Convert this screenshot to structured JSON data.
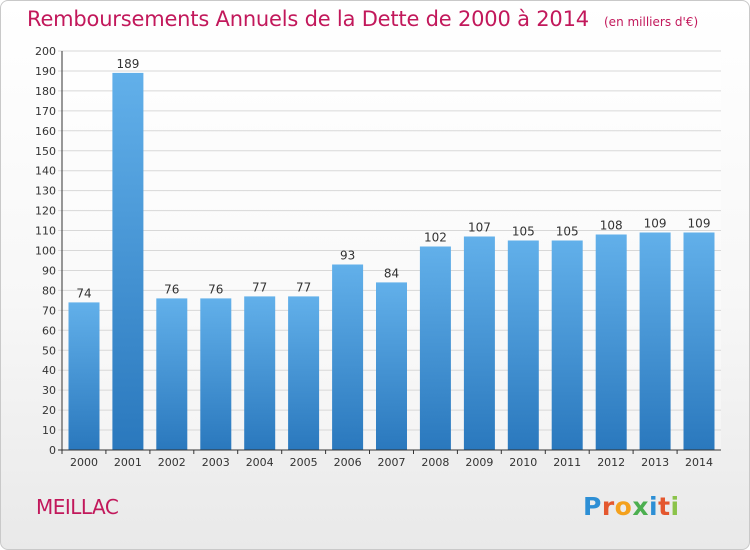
{
  "header": {
    "title": "Remboursements Annuels de la Dette de 2000 à 2014",
    "subtitle": "(en milliers d'€)"
  },
  "footer": {
    "location": "MEILLAC",
    "logo_text": "Proxiti"
  },
  "colors": {
    "title": "#c2185b",
    "bar_light": "#62b0ea",
    "bar_dark": "#2a78bd",
    "grid": "#d8d8d8",
    "axis": "#333333"
  },
  "chart_data": {
    "type": "bar",
    "title": "Remboursements Annuels de la Dette de 2000 à 2014",
    "subtitle": "(en milliers d'€)",
    "xlabel": "",
    "ylabel": "",
    "categories": [
      "2000",
      "2001",
      "2002",
      "2003",
      "2004",
      "2005",
      "2006",
      "2007",
      "2008",
      "2009",
      "2010",
      "2011",
      "2012",
      "2013",
      "2014"
    ],
    "values": [
      74,
      189,
      76,
      76,
      77,
      77,
      93,
      84,
      102,
      107,
      105,
      105,
      108,
      109,
      109
    ],
    "ylim": [
      0,
      200
    ],
    "ytick_step": 10,
    "grid": true,
    "legend": "none"
  }
}
